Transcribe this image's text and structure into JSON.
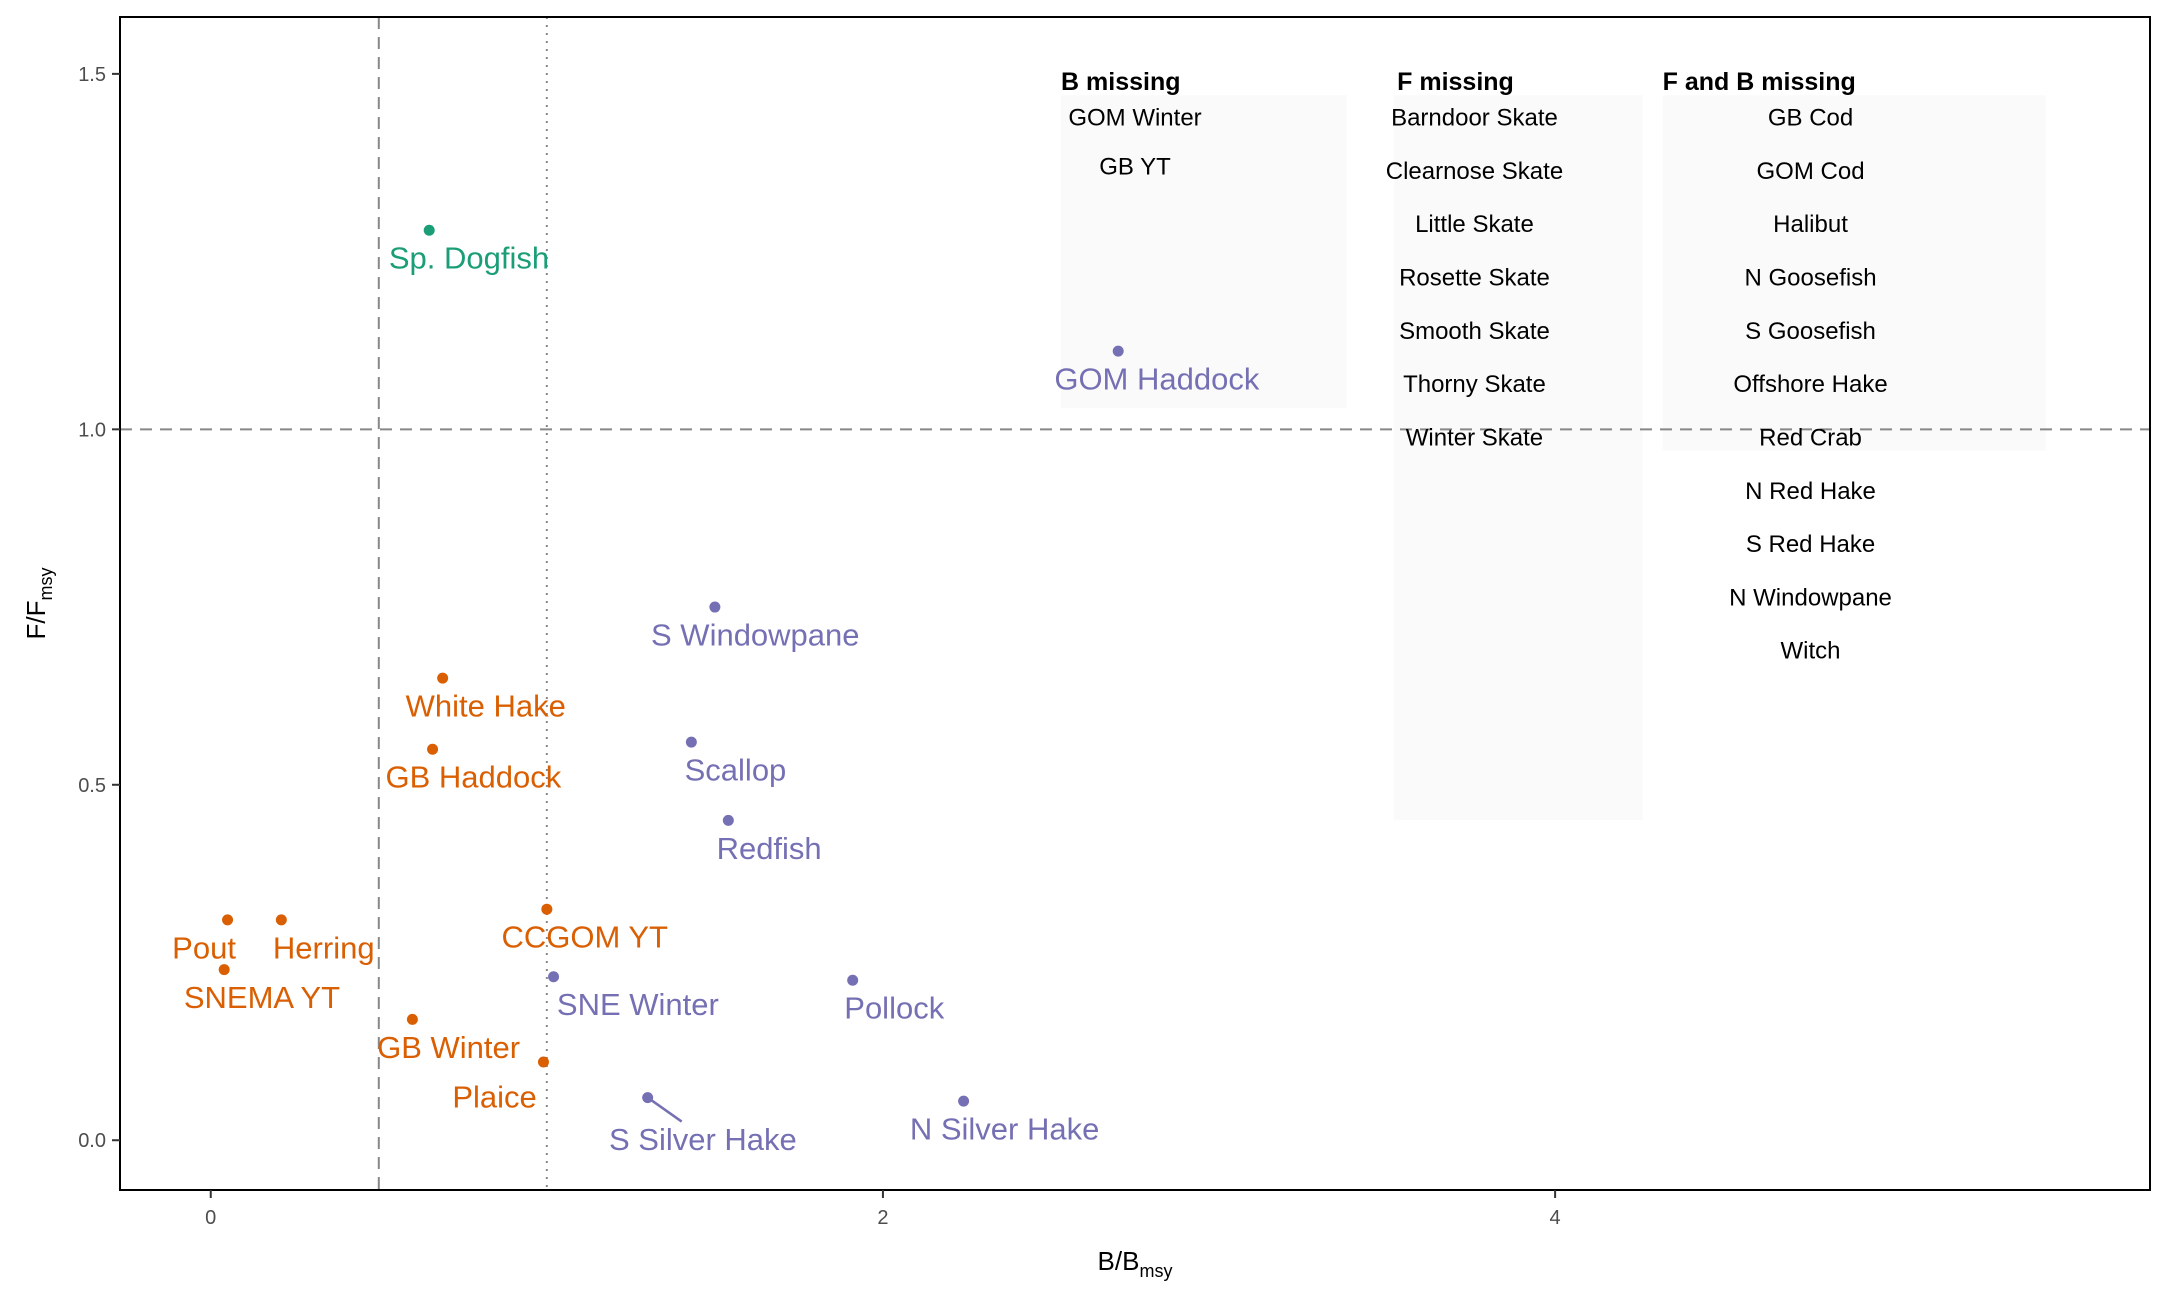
{
  "chart_data": {
    "type": "scatter",
    "xlabel": {
      "main": "B/B",
      "sub": "msy"
    },
    "ylabel": {
      "main": "F/F",
      "sub": "msy"
    },
    "xlim": [
      -0.27,
      5.77
    ],
    "ylim": [
      -0.07,
      1.58
    ],
    "x_ticks": [
      0,
      2,
      4
    ],
    "y_ticks": [
      0.0,
      0.5,
      1.0,
      1.5
    ],
    "y_tick_labels": [
      "0.0",
      "0.5",
      "1.0",
      "1.5"
    ],
    "grid": false,
    "reference_lines": {
      "x_dashed": 0.5,
      "x_dotted": 1.0,
      "y_dashed": 1.0
    },
    "colors": {
      "orange": "#d95f02",
      "green": "#1b9e77",
      "purple": "#7570b3"
    },
    "points": [
      {
        "label": "Sp. Dogfish",
        "x": 0.65,
        "y": 1.28,
        "color": "green"
      },
      {
        "label": "GOM Haddock",
        "x": 2.7,
        "y": 1.11,
        "color": "purple"
      },
      {
        "label": "S Windowpane",
        "x": 1.5,
        "y": 0.75,
        "color": "purple"
      },
      {
        "label": "White Hake",
        "x": 0.69,
        "y": 0.65,
        "color": "orange"
      },
      {
        "label": "GB Haddock",
        "x": 0.66,
        "y": 0.55,
        "color": "orange"
      },
      {
        "label": "Scallop",
        "x": 1.43,
        "y": 0.56,
        "color": "purple"
      },
      {
        "label": "Redfish",
        "x": 1.54,
        "y": 0.45,
        "color": "purple"
      },
      {
        "label": "Pout",
        "x": 0.05,
        "y": 0.31,
        "color": "orange"
      },
      {
        "label": "Herring",
        "x": 0.21,
        "y": 0.31,
        "color": "orange"
      },
      {
        "label": "CCGOM YT",
        "x": 1.0,
        "y": 0.325,
        "color": "orange"
      },
      {
        "label": "SNEMA YT",
        "x": 0.04,
        "y": 0.24,
        "color": "orange"
      },
      {
        "label": "SNE Winter",
        "x": 1.02,
        "y": 0.23,
        "color": "purple"
      },
      {
        "label": "Pollock",
        "x": 1.91,
        "y": 0.225,
        "color": "purple"
      },
      {
        "label": "GB Winter",
        "x": 0.6,
        "y": 0.17,
        "color": "orange"
      },
      {
        "label": "Plaice",
        "x": 0.99,
        "y": 0.11,
        "color": "orange"
      },
      {
        "label": "S Silver Hake",
        "x": 1.3,
        "y": 0.06,
        "color": "purple"
      },
      {
        "label": "N Silver Hake",
        "x": 2.24,
        "y": 0.055,
        "color": "purple"
      }
    ],
    "tables": [
      {
        "header": "B missing",
        "items": [
          "GOM Winter",
          "GB YT"
        ]
      },
      {
        "header": "F missing",
        "items": [
          "Barndoor Skate",
          "Clearnose Skate",
          "Little Skate",
          "Rosette Skate",
          "Smooth Skate",
          "Thorny Skate",
          "Winter Skate"
        ]
      },
      {
        "header": "F and B missing",
        "items": [
          "GB Cod",
          "GOM Cod",
          "Halibut",
          "N Goosefish",
          "S Goosefish",
          "Offshore Hake",
          "Red Crab",
          "N Red Hake",
          "S Red Hake",
          "N Windowpane",
          "Witch"
        ]
      }
    ]
  }
}
